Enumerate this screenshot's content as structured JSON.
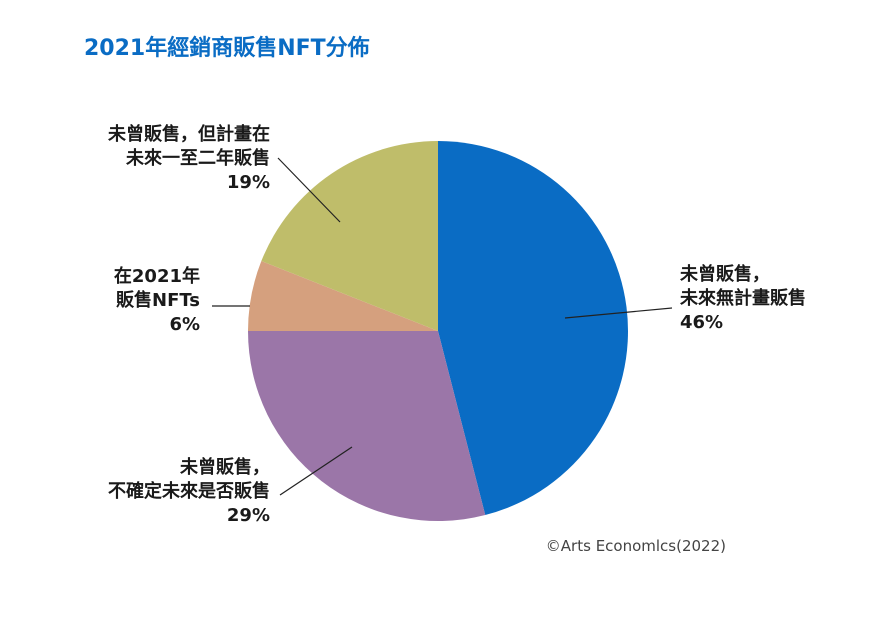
{
  "chart_data": {
    "type": "pie",
    "title": "2021年經銷商販售NFT分佈",
    "slices": [
      {
        "label_lines": [
          "未曾販售，",
          "未來無計畫販售"
        ],
        "value": 46,
        "percent_label": "46%",
        "color": "#0a6cc4",
        "label_side": "right"
      },
      {
        "label_lines": [
          "未曾販售，",
          "不確定未來是否販售"
        ],
        "value": 29,
        "percent_label": "29%",
        "color": "#9b76a8",
        "label_side": "left"
      },
      {
        "label_lines": [
          "在2021年",
          "販售NFTs"
        ],
        "value": 6,
        "percent_label": "6%",
        "color": "#d5a07e",
        "label_side": "left"
      },
      {
        "label_lines": [
          "未曾販售，但計畫在",
          "未來一至二年販售"
        ],
        "value": 19,
        "percent_label": "19%",
        "color": "#bfbd6a",
        "label_side": "left"
      }
    ],
    "start": "12 o'clock",
    "direction": "clockwise"
  },
  "source": "©Arts Economlcs(2022)"
}
